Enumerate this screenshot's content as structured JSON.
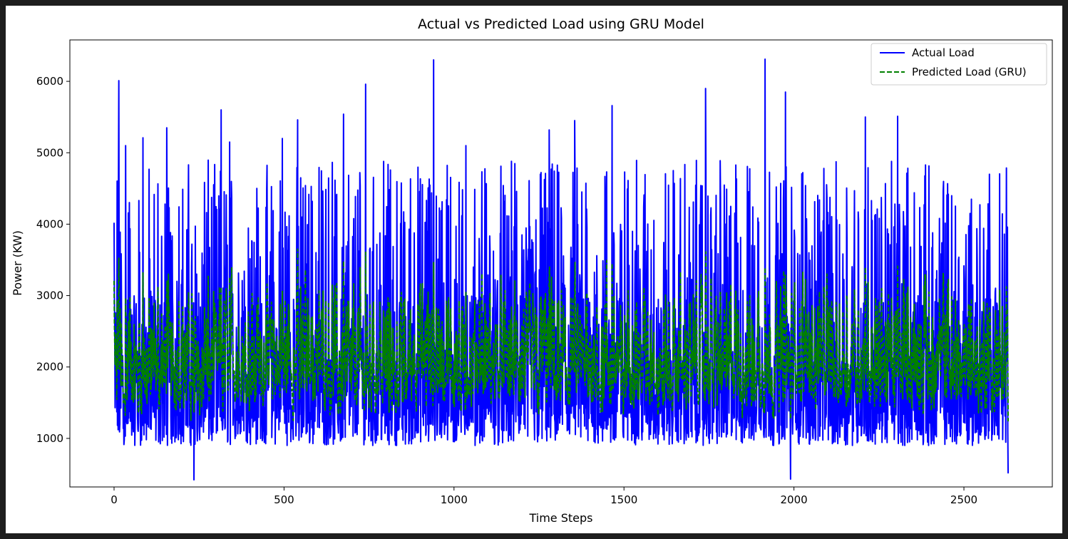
{
  "chart_data": {
    "type": "line",
    "title": "Actual vs Predicted Load using GRU Model",
    "xlabel": "Time Steps",
    "ylabel": "Power (KW)",
    "xlim": [
      -130,
      2760
    ],
    "ylim": [
      320,
      6580
    ],
    "x_ticks": [
      0,
      500,
      1000,
      1500,
      2000,
      2500
    ],
    "y_ticks": [
      1000,
      2000,
      3000,
      4000,
      5000,
      6000
    ],
    "grid": false,
    "legend_position": "top-right",
    "n_points": 2631,
    "series": [
      {
        "name": "Actual Load",
        "color": "#0000ff",
        "style": "solid",
        "min": 420,
        "max": 6310,
        "typical_low": 900,
        "typical_high": 4500,
        "peaks": [
          {
            "x": 0,
            "y": 4020
          },
          {
            "x": 14,
            "y": 6010
          },
          {
            "x": 34,
            "y": 5100
          },
          {
            "x": 85,
            "y": 5210
          },
          {
            "x": 155,
            "y": 5350
          },
          {
            "x": 235,
            "y": 420
          },
          {
            "x": 315,
            "y": 5600
          },
          {
            "x": 340,
            "y": 5150
          },
          {
            "x": 495,
            "y": 5200
          },
          {
            "x": 540,
            "y": 5460
          },
          {
            "x": 675,
            "y": 5540
          },
          {
            "x": 740,
            "y": 5960
          },
          {
            "x": 940,
            "y": 6300
          },
          {
            "x": 1035,
            "y": 5100
          },
          {
            "x": 1280,
            "y": 5320
          },
          {
            "x": 1355,
            "y": 5450
          },
          {
            "x": 1465,
            "y": 5660
          },
          {
            "x": 1740,
            "y": 5900
          },
          {
            "x": 1915,
            "y": 6310
          },
          {
            "x": 1975,
            "y": 5850
          },
          {
            "x": 1990,
            "y": 430
          },
          {
            "x": 2210,
            "y": 5500
          },
          {
            "x": 2305,
            "y": 5510
          },
          {
            "x": 2630,
            "y": 5060
          },
          {
            "x": 2630,
            "y": 510
          }
        ]
      },
      {
        "name": "Predicted Load (GRU)",
        "color": "#008000",
        "style": "dashed",
        "min": 800,
        "max": 4620,
        "typical_low": 1200,
        "typical_high": 3700
      }
    ]
  }
}
